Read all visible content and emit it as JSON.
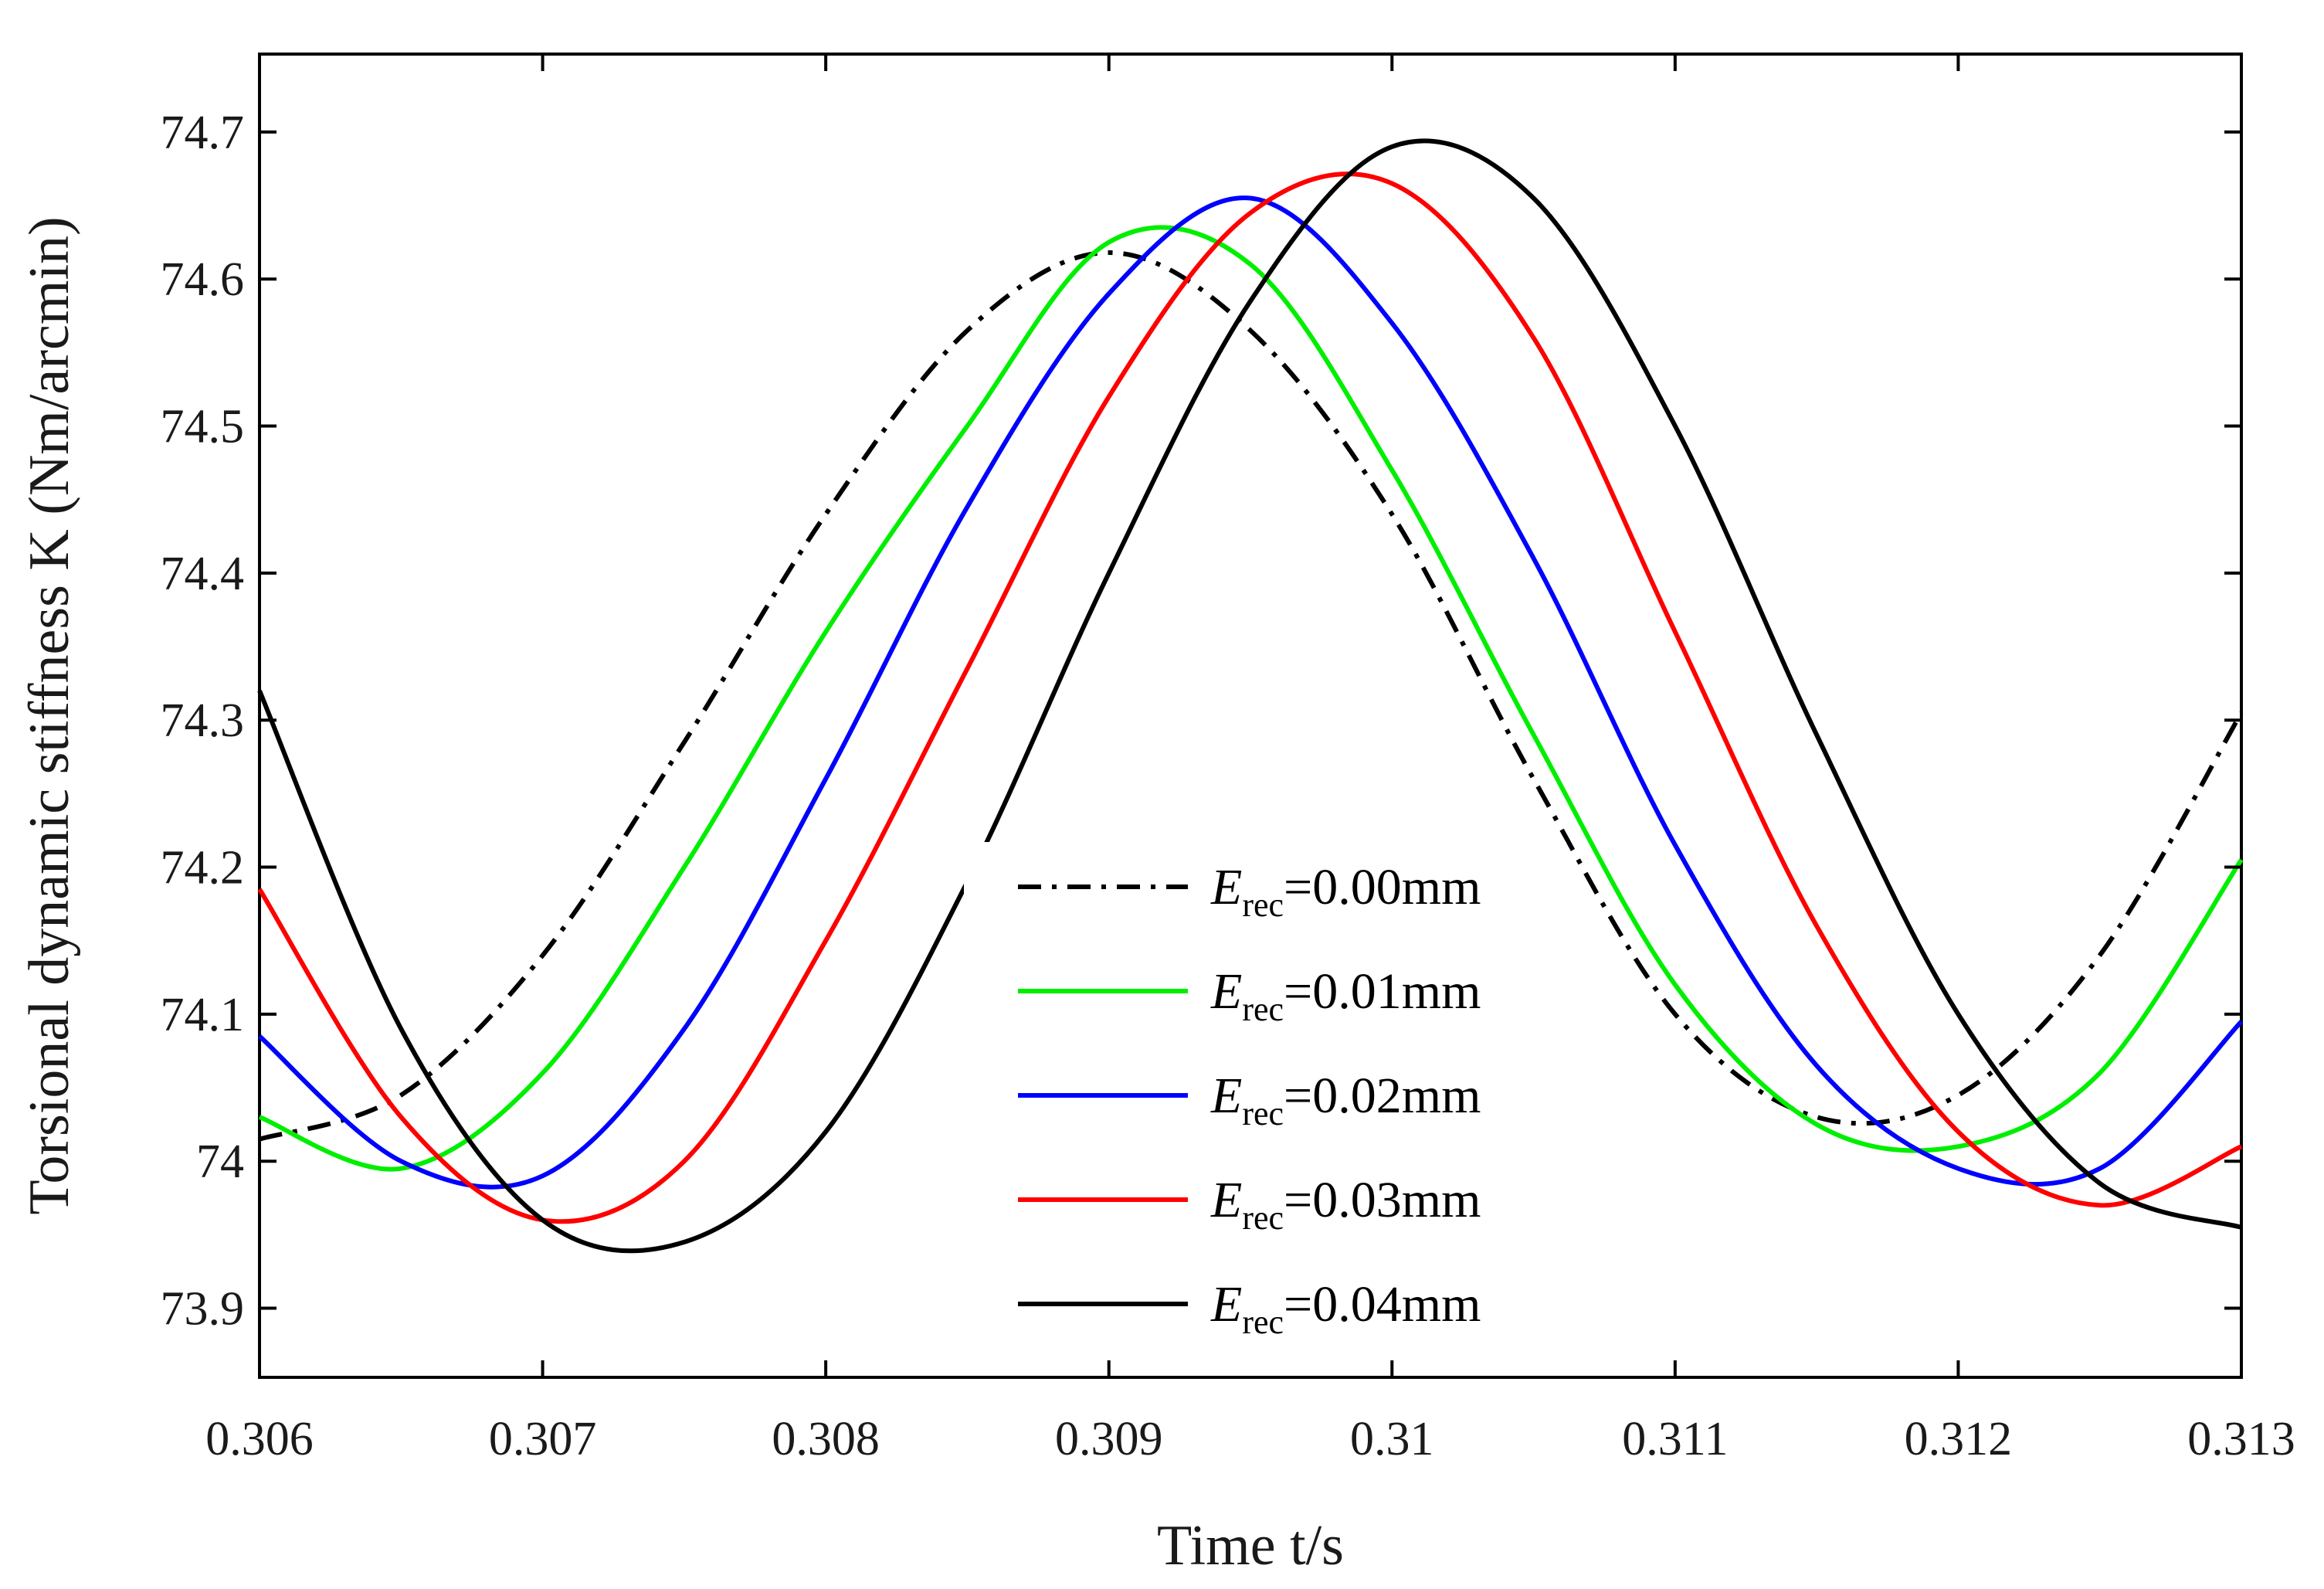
{
  "chart_data": {
    "type": "line",
    "title": "",
    "xlabel": "Time t/s",
    "ylabel": "Torsional dynamic stiffness K (Nm/arcmin)",
    "xlim": [
      0.306,
      0.313
    ],
    "ylim": [
      73.853,
      74.753
    ],
    "x_ticks": [
      0.306,
      0.307,
      0.308,
      0.309,
      0.31,
      0.311,
      0.312,
      0.313
    ],
    "x_tick_labels": [
      "0.306",
      "0.307",
      "0.308",
      "0.309",
      "0.31",
      "0.311",
      "0.312",
      "0.313"
    ],
    "y_ticks": [
      73.9,
      74.0,
      74.1,
      74.2,
      74.3,
      74.4,
      74.5,
      74.6,
      74.7
    ],
    "y_tick_labels": [
      "73.9",
      "74",
      "74.1",
      "74.2",
      "74.3",
      "74.4",
      "74.5",
      "74.6",
      "74.7"
    ],
    "legend_position": "lower-center",
    "legend_prefix": "E",
    "legend_subscript": "rec",
    "series": [
      {
        "name": "E_rec=0.00mm",
        "legend_value": "=0.00mm",
        "color": "#000000",
        "dash": "dash-dot",
        "x": [
          0.306,
          0.3065,
          0.307,
          0.3075,
          0.308,
          0.3085,
          0.309,
          0.3095,
          0.31,
          0.3105,
          0.311,
          0.3115,
          0.312,
          0.3125,
          0.313
        ],
        "y": [
          74.015,
          74.045,
          74.14,
          74.285,
          74.44,
          74.565,
          74.618,
          74.565,
          74.44,
          74.26,
          74.1,
          74.03,
          74.045,
          74.14,
          74.305
        ]
      },
      {
        "name": "E_rec=0.01mm",
        "legend_value": "=0.01mm",
        "color": "#00ee00",
        "dash": "solid",
        "x": [
          0.306,
          0.3065,
          0.307,
          0.3075,
          0.308,
          0.3085,
          0.309,
          0.3095,
          0.31,
          0.3105,
          0.311,
          0.3115,
          0.312,
          0.3125,
          0.313
        ],
        "y": [
          74.03,
          73.995,
          74.06,
          74.2,
          74.36,
          74.5,
          74.625,
          74.61,
          74.47,
          74.29,
          74.12,
          74.025,
          74.01,
          74.06,
          74.205
        ]
      },
      {
        "name": "E_rec=0.02mm",
        "legend_value": "=0.02mm",
        "color": "#0000ff",
        "dash": "solid",
        "x": [
          0.306,
          0.3065,
          0.307,
          0.3075,
          0.308,
          0.3085,
          0.309,
          0.3095,
          0.31,
          0.3105,
          0.311,
          0.3115,
          0.312,
          0.3125,
          0.313
        ],
        "y": [
          74.085,
          74.0,
          73.99,
          74.09,
          74.26,
          74.445,
          74.59,
          74.655,
          74.57,
          74.41,
          74.215,
          74.065,
          73.995,
          73.995,
          74.095
        ]
      },
      {
        "name": "E_rec=0.03mm",
        "legend_value": "=0.03mm",
        "color": "#ff0000",
        "dash": "solid",
        "x": [
          0.306,
          0.3065,
          0.307,
          0.3075,
          0.308,
          0.3085,
          0.309,
          0.3095,
          0.31,
          0.3105,
          0.311,
          0.3115,
          0.312,
          0.3125,
          0.313
        ],
        "y": [
          74.185,
          74.03,
          73.96,
          74.0,
          74.15,
          74.335,
          74.52,
          74.645,
          74.665,
          74.56,
          74.36,
          74.16,
          74.02,
          73.97,
          74.01
        ]
      },
      {
        "name": "E_rec=0.04mm",
        "legend_value": "=0.04mm",
        "color": "#000000",
        "dash": "solid",
        "x": [
          0.306,
          0.3065,
          0.307,
          0.3075,
          0.308,
          0.3085,
          0.309,
          0.3095,
          0.31,
          0.3105,
          0.311,
          0.3115,
          0.312,
          0.3125,
          0.313
        ],
        "y": [
          74.32,
          74.09,
          73.96,
          73.945,
          74.02,
          74.19,
          74.4,
          74.585,
          74.69,
          74.655,
          74.5,
          74.29,
          74.1,
          73.985,
          73.955
        ]
      }
    ]
  }
}
